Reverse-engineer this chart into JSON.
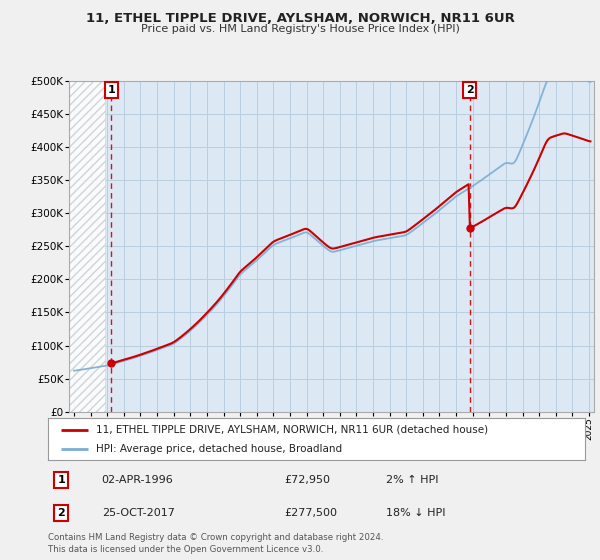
{
  "title": "11, ETHEL TIPPLE DRIVE, AYLSHAM, NORWICH, NR11 6UR",
  "subtitle": "Price paid vs. HM Land Registry's House Price Index (HPI)",
  "ylim": [
    0,
    500000
  ],
  "yticks": [
    0,
    50000,
    100000,
    150000,
    200000,
    250000,
    300000,
    350000,
    400000,
    450000,
    500000
  ],
  "ytick_labels": [
    "£0",
    "£50K",
    "£100K",
    "£150K",
    "£200K",
    "£250K",
    "£300K",
    "£350K",
    "£400K",
    "£450K",
    "£500K"
  ],
  "bg_color": "#f0f0f0",
  "plot_bg_color": "#dce9f5",
  "grid_color": "#b8cfe0",
  "hpi_color": "#7aadd4",
  "price_color": "#cc0000",
  "marker_color": "#cc0000",
  "dashed_line_color": "#cc0000",
  "legend_label_price": "11, ETHEL TIPPLE DRIVE, AYLSHAM, NORWICH, NR11 6UR (detached house)",
  "legend_label_hpi": "HPI: Average price, detached house, Broadland",
  "annotation1_label": "1",
  "annotation1_date": "02-APR-1996",
  "annotation1_price": "£72,950",
  "annotation1_pct": "2% ↑ HPI",
  "annotation2_label": "2",
  "annotation2_date": "25-OCT-2017",
  "annotation2_price": "£277,500",
  "annotation2_pct": "18% ↓ HPI",
  "footer": "Contains HM Land Registry data © Crown copyright and database right 2024.\nThis data is licensed under the Open Government Licence v3.0.",
  "purchase1_year": 1996.25,
  "purchase1_price": 72950,
  "purchase2_year": 2017.81,
  "purchase2_price": 277500,
  "xmin": 1993.7,
  "xmax": 2025.3
}
